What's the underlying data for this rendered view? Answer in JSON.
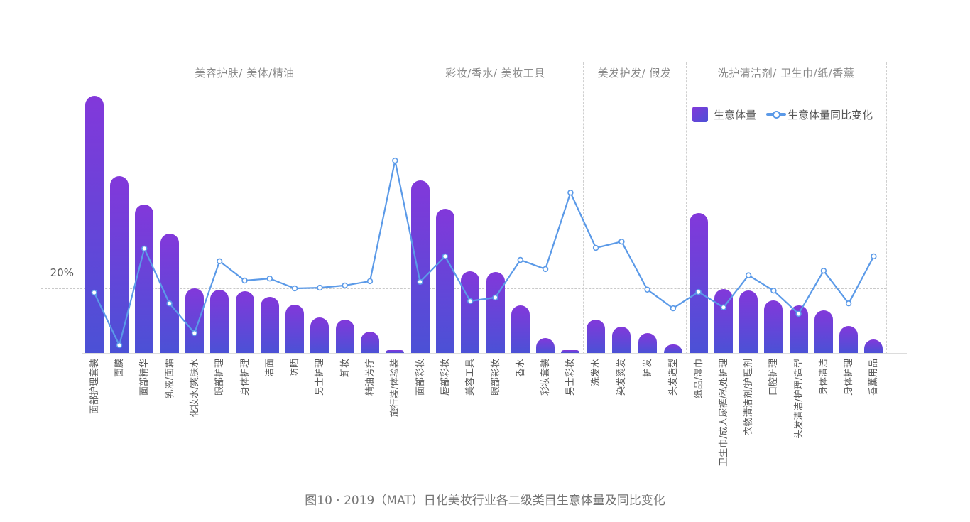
{
  "colors": {
    "bar_top": "#8238da",
    "bar_bottom": "#4b51d6",
    "line": "#5b9ae8",
    "marker_fill": "#ffffff",
    "grid_dash": "#c9c9c9",
    "axis": "#dcdcdc",
    "header_text": "#8a8a8a",
    "label_text": "#595959",
    "caption_text": "#757575"
  },
  "chart_data": {
    "type": "bar+line combo",
    "title": "图10 · 2019（MAT）日化美妆行业各二级类目生意体量及同比变化",
    "xlabel": "",
    "ylabel": "",
    "y_axis": {
      "tick_label": "20%",
      "tick_value": 20,
      "note": "only one dashed gridline at 20%; bar axis unlabeled, values estimated against that gridline"
    },
    "legend": [
      {
        "label": "生意体量",
        "type": "bar"
      },
      {
        "label": "生意体量同比变化",
        "type": "line"
      }
    ],
    "grid": {
      "horizontal_dashed_at": 20,
      "section_dividers": "vertical dashed",
      "legend_position": "top-right"
    },
    "sections": [
      {
        "label": "美容护肤/ 美体/精油",
        "categories": [
          "面部护理套装",
          "面膜",
          "面部精华",
          "乳液/面霜",
          "化妆水/爽肤水",
          "眼部护理",
          "身体护理",
          "洁面",
          "防晒",
          "男士护理",
          "卸妆",
          "精油芳疗",
          "旅行装/体验装"
        ],
        "volume_est": [
          78.7,
          54.1,
          45.4,
          36.5,
          19.8,
          19.3,
          18.9,
          17.2,
          14.8,
          10.9,
          10.2,
          6.5,
          0.9
        ],
        "yoy_pct_est": [
          18.7,
          2.6,
          32.2,
          15.4,
          6.3,
          28.3,
          22.4,
          23.0,
          20.0,
          20.2,
          20.9,
          22.2,
          59.1
        ]
      },
      {
        "label": "彩妆/香水/ 美妆工具",
        "categories": [
          "面部彩妆",
          "唇部彩妆",
          "美容工具",
          "眼部彩妆",
          "香水",
          "彩妆套装",
          "男士彩妆"
        ],
        "volume_est": [
          52.8,
          44.1,
          25.0,
          24.8,
          14.6,
          4.6,
          0.9
        ],
        "yoy_pct_est": [
          22.0,
          29.8,
          16.1,
          17.2,
          28.7,
          25.9,
          49.3
        ]
      },
      {
        "label": "美发护发/ 假发",
        "categories": [
          "洗发水",
          "染发烫发",
          "护发",
          "头发造型"
        ],
        "volume_est": [
          10.2,
          8.0,
          6.1,
          2.6
        ],
        "yoy_pct_est": [
          32.4,
          34.3,
          19.6,
          13.9
        ]
      },
      {
        "label": "洗护清洁剂/ 卫生巾/纸/香薰",
        "categories": [
          "纸品/湿巾",
          "卫生巾/成人尿裤/私处护理",
          "衣物清洁剂/护理剂",
          "口腔护理",
          "头发清洁/护理/造型",
          "身体清洁",
          "身体护理",
          "香薰用品"
        ],
        "volume_est": [
          42.8,
          19.6,
          19.1,
          16.1,
          14.6,
          13.0,
          8.3,
          4.1
        ],
        "yoy_pct_est": [
          18.9,
          14.2,
          24.0,
          19.3,
          12.2,
          25.4,
          15.4,
          29.8
        ]
      }
    ]
  }
}
